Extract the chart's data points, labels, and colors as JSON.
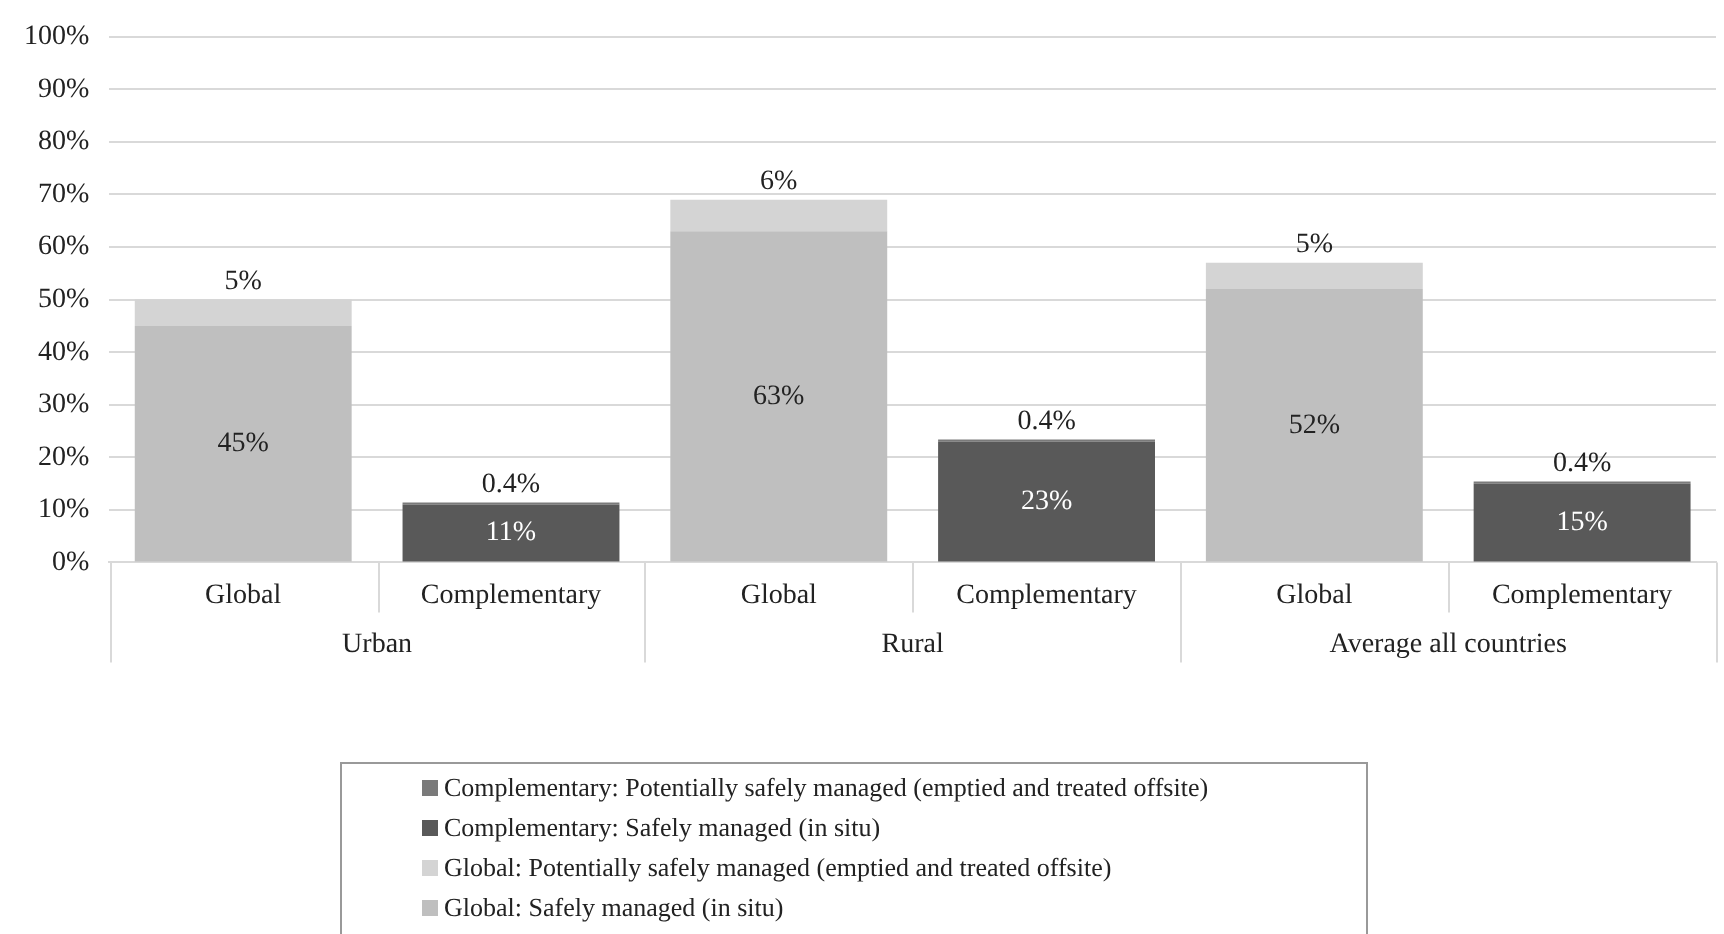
{
  "chart_data": {
    "type": "bar",
    "stacked": true,
    "categories": [
      "Global",
      "Complementary",
      "Global",
      "Complementary",
      "Global",
      "Complementary"
    ],
    "annotations": [
      "Urban",
      "Rural",
      "Average all countries"
    ],
    "series": [
      {
        "name": "Global: Safely managed (in situ)",
        "color": "#bfbfbf",
        "values": [
          45,
          null,
          63,
          null,
          52,
          null
        ],
        "value_labels": [
          "45%",
          null,
          "63%",
          null,
          "52%",
          null
        ]
      },
      {
        "name": "Global: Potentially safely managed (emptied and treated offsite)",
        "color": "#d4d4d4",
        "values": [
          5,
          null,
          6,
          null,
          5,
          null
        ],
        "value_labels": [
          "5%",
          null,
          "6%",
          null,
          "5%",
          null
        ]
      },
      {
        "name": "Complementary: Safely managed (in situ)",
        "color": "#595959",
        "values": [
          null,
          11,
          null,
          23,
          null,
          15
        ],
        "value_labels": [
          null,
          "11%",
          null,
          "23%",
          null,
          "15%"
        ]
      },
      {
        "name": "Complementary: Potentially safely managed (emptied and treated offsite)",
        "color": "#7a7a7a",
        "values": [
          null,
          0.4,
          null,
          0.4,
          null,
          0.4
        ],
        "value_labels": [
          null,
          "0.4%",
          null,
          "0.4%",
          null,
          "0.4%"
        ]
      }
    ],
    "ylim": [
      0,
      100
    ],
    "yticks": [
      {
        "value": 0,
        "label": "0%"
      },
      {
        "value": 10,
        "label": "10%"
      },
      {
        "value": 20,
        "label": "20%"
      },
      {
        "value": 30,
        "label": "30%"
      },
      {
        "value": 40,
        "label": "40%"
      },
      {
        "value": 50,
        "label": "50%"
      },
      {
        "value": 60,
        "label": "60%"
      },
      {
        "value": 70,
        "label": "70%"
      },
      {
        "value": 80,
        "label": "80%"
      },
      {
        "value": 90,
        "label": "90%"
      },
      {
        "value": 100,
        "label": "100%"
      }
    ],
    "grid": "y",
    "legend": "bottom"
  }
}
